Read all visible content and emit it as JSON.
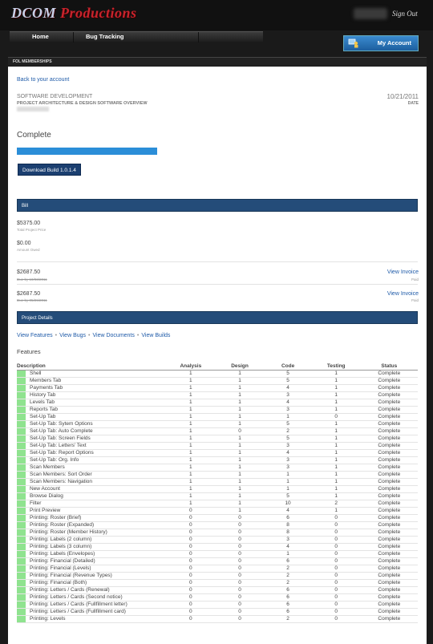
{
  "header": {
    "logo_word1": "DCOM",
    "logo_word2": "Productions",
    "sign_out": "Sign Out"
  },
  "nav": {
    "items": [
      {
        "label": "Home"
      },
      {
        "label": "Bug Tracking"
      },
      {
        "label": ""
      }
    ],
    "my_account": "My Account"
  },
  "band_label": "FOL MEMBERSHIPS",
  "back_link": "Back to your account",
  "project": {
    "section": "SOFTWARE DEVELOPMENT",
    "title": "PROJECT ARCHITECTURE & DESIGN SOFTWARE OVERVIEW",
    "date": "10/21/2011",
    "date_label": "DATE"
  },
  "status": {
    "label": "Complete",
    "progress": 1.0,
    "download_label": "Download Build 1.0.1.4"
  },
  "bill": {
    "header": "Bill",
    "total_amount": "$5375.00",
    "total_label": "Total Project Price",
    "owed_amount": "$0.00",
    "owed_label": "Amount Owed",
    "invoices": [
      {
        "amount": "$2687.50",
        "due": "Due by 10/03/2011",
        "link": "View Invoice",
        "status": "Paid"
      },
      {
        "amount": "$2687.50",
        "due": "Due by 05/26/2011",
        "link": "View Invoice",
        "status": "Paid"
      }
    ]
  },
  "details": {
    "header": "Project Details",
    "links": [
      "View Features",
      "View Bugs",
      "View Documents",
      "View Builds"
    ],
    "features_label": "Features"
  },
  "table": {
    "headers": [
      "Description",
      "Analysis",
      "Design",
      "Code",
      "Testing",
      "Status"
    ],
    "rows": [
      [
        "Shell",
        "1",
        "1",
        "5",
        "1",
        "Complete"
      ],
      [
        "Members Tab",
        "1",
        "1",
        "5",
        "1",
        "Complete"
      ],
      [
        "Payments Tab",
        "1",
        "1",
        "4",
        "1",
        "Complete"
      ],
      [
        "History Tab",
        "1",
        "1",
        "3",
        "1",
        "Complete"
      ],
      [
        "Levels Tab",
        "1",
        "1",
        "4",
        "1",
        "Complete"
      ],
      [
        "Reports Tab",
        "1",
        "1",
        "3",
        "1",
        "Complete"
      ],
      [
        "Set-Up Tab",
        "1",
        "1",
        "1",
        "0",
        "Complete"
      ],
      [
        "Set-Up Tab: Sytem Options",
        "1",
        "1",
        "5",
        "1",
        "Complete"
      ],
      [
        "Set-Up Tab: Auto Complete",
        "1",
        "0",
        "2",
        "1",
        "Complete"
      ],
      [
        "Set-Up Tab: Screen Fields",
        "1",
        "1",
        "5",
        "1",
        "Complete"
      ],
      [
        "Set-Up Tab: Letters' Text",
        "1",
        "1",
        "3",
        "1",
        "Complete"
      ],
      [
        "Set-Up Tab: Report Options",
        "1",
        "1",
        "4",
        "1",
        "Complete"
      ],
      [
        "Set-Up Tab: Org. Info",
        "1",
        "1",
        "3",
        "1",
        "Complete"
      ],
      [
        "Scan Members",
        "1",
        "1",
        "3",
        "1",
        "Complete"
      ],
      [
        "Scan Members: Sort Order",
        "1",
        "1",
        "1",
        "1",
        "Complete"
      ],
      [
        "Scan Members: Navigation",
        "1",
        "1",
        "1",
        "1",
        "Complete"
      ],
      [
        "New Account",
        "1",
        "1",
        "1",
        "1",
        "Complete"
      ],
      [
        "Browse Dialog",
        "1",
        "1",
        "5",
        "1",
        "Complete"
      ],
      [
        "Filter",
        "1",
        "1",
        "10",
        "2",
        "Complete"
      ],
      [
        "Print Preview",
        "0",
        "1",
        "4",
        "1",
        "Complete"
      ],
      [
        "Printing: Roster (Brief)",
        "0",
        "0",
        "6",
        "0",
        "Complete"
      ],
      [
        "Printing: Roster (Expanded)",
        "0",
        "0",
        "8",
        "0",
        "Complete"
      ],
      [
        "Printing: Roster (Member History)",
        "0",
        "0",
        "8",
        "0",
        "Complete"
      ],
      [
        "Printing: Labels (2 column)",
        "0",
        "0",
        "3",
        "0",
        "Complete"
      ],
      [
        "Printing: Labels (3 column)",
        "0",
        "0",
        "4",
        "0",
        "Complete"
      ],
      [
        "Printing: Labels (Envelopes)",
        "0",
        "0",
        "1",
        "0",
        "Complete"
      ],
      [
        "Printing: Financial (Detailed)",
        "0",
        "0",
        "6",
        "0",
        "Complete"
      ],
      [
        "Printing: Financial (Levels)",
        "0",
        "0",
        "2",
        "0",
        "Complete"
      ],
      [
        "Printing: Financial (Revenue Types)",
        "0",
        "0",
        "2",
        "0",
        "Complete"
      ],
      [
        "Printing: Financial (Both)",
        "0",
        "0",
        "2",
        "0",
        "Complete"
      ],
      [
        "Printing: Letters / Cards (Renewal)",
        "0",
        "0",
        "6",
        "0",
        "Complete"
      ],
      [
        "Printing: Letters / Cards (Second notice)",
        "0",
        "0",
        "6",
        "0",
        "Complete"
      ],
      [
        "Printing: Letters / Cards (Fullfillment letter)",
        "0",
        "0",
        "6",
        "0",
        "Complete"
      ],
      [
        "Printing: Letters / Cards (Fullfillment card)",
        "0",
        "0",
        "6",
        "0",
        "Complete"
      ],
      [
        "Printing: Levels",
        "0",
        "0",
        "2",
        "0",
        "Complete"
      ]
    ]
  },
  "colors": {
    "accent": "#244c79",
    "progress": "#2b8ed8",
    "feature_marker": "#8fe38f",
    "link": "#1e5aa8"
  }
}
